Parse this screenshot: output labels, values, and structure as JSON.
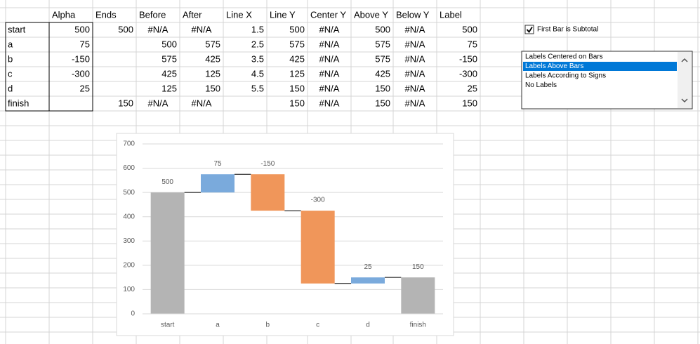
{
  "table": {
    "headers": [
      "Alpha",
      "Ends",
      "Before",
      "After",
      "Line X",
      "Line Y",
      "Center Y",
      "Above Y",
      "Below Y",
      "Label"
    ],
    "rows": [
      {
        "label": "start",
        "cells": [
          500,
          500,
          "#N/A",
          "#N/A",
          1.5,
          500,
          "#N/A",
          500,
          "#N/A",
          500
        ]
      },
      {
        "label": "a",
        "cells": [
          75,
          null,
          500,
          575,
          2.5,
          575,
          "#N/A",
          575,
          "#N/A",
          75
        ]
      },
      {
        "label": "b",
        "cells": [
          -150,
          null,
          575,
          425,
          3.5,
          425,
          "#N/A",
          575,
          "#N/A",
          -150
        ]
      },
      {
        "label": "c",
        "cells": [
          -300,
          null,
          425,
          125,
          4.5,
          125,
          "#N/A",
          425,
          "#N/A",
          -300
        ]
      },
      {
        "label": "d",
        "cells": [
          25,
          null,
          125,
          150,
          5.5,
          150,
          "#N/A",
          150,
          "#N/A",
          25
        ]
      },
      {
        "label": "finish",
        "cells": [
          null,
          150,
          "#N/A",
          "#N/A",
          null,
          150,
          "#N/A",
          150,
          "#N/A",
          150
        ]
      }
    ]
  },
  "chart_data": {
    "type": "waterfall",
    "categories": [
      "start",
      "a",
      "b",
      "c",
      "d",
      "finish"
    ],
    "values": [
      500,
      75,
      -150,
      -300,
      25,
      150
    ],
    "totals": [
      true,
      false,
      false,
      false,
      false,
      true
    ],
    "colors": {
      "increase": "#7aaadc",
      "decrease": "#f0965a",
      "total": "#b4b4b4"
    },
    "ylim": [
      0,
      700
    ],
    "yticks": [
      0,
      100,
      200,
      300,
      400,
      500,
      600,
      700
    ],
    "grid": true,
    "label_position": "above"
  },
  "checkbox": {
    "label": "First Bar is Subtotal",
    "checked": true
  },
  "listbox": {
    "items": [
      "Labels Centered on Bars",
      "Labels Above Bars",
      "Labels According to Signs",
      "No Labels"
    ],
    "selected": 1
  }
}
